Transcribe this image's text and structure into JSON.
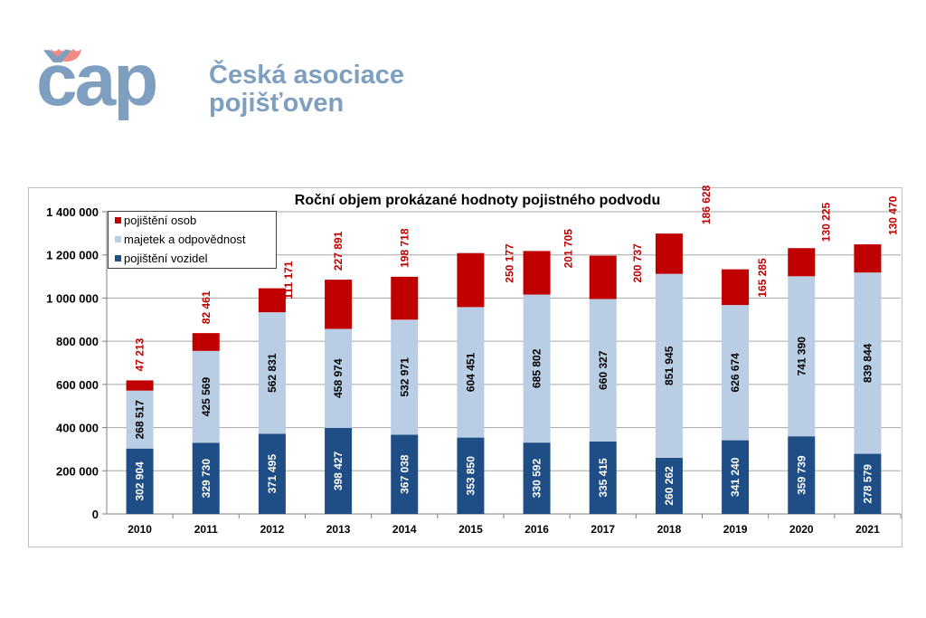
{
  "logo": {
    "mark": "čap",
    "line1": "Česká asociace",
    "line2": "pojišťoven"
  },
  "chart_data": {
    "type": "bar",
    "stacked": true,
    "title": "Roční objem prokázané hodnoty pojistného podvodu",
    "xlabel": "",
    "ylabel": "",
    "ylim": [
      0,
      1400000
    ],
    "yticks": [
      "0",
      "200 000",
      "400 000",
      "600 000",
      "800 000",
      "1 000 000",
      "1 200 000",
      "1 400 000"
    ],
    "grid": true,
    "legend_position": "top-left",
    "categories": [
      "2010",
      "2011",
      "2012",
      "2013",
      "2014",
      "2015",
      "2016",
      "2017",
      "2018",
      "2019",
      "2020",
      "2021"
    ],
    "series": [
      {
        "name": "pojištění vozidel",
        "color": "#1f4e87",
        "label_color": "#ffffff",
        "values": [
          302904,
          329730,
          371495,
          398427,
          367038,
          353850,
          330592,
          335415,
          260262,
          341240,
          359739,
          278579
        ]
      },
      {
        "name": "majetek a odpovědnost",
        "color": "#b9cde5",
        "label_color": "#000000",
        "values": [
          268517,
          425569,
          562831,
          458974,
          532971,
          604451,
          685802,
          660327,
          851945,
          626674,
          741390,
          839844
        ]
      },
      {
        "name": "pojištění osob",
        "color": "#c00000",
        "label_color": "#c00000",
        "values": [
          47213,
          82461,
          111171,
          227891,
          198718,
          250177,
          201705,
          200737,
          186628,
          165285,
          130225,
          130470
        ]
      }
    ]
  }
}
